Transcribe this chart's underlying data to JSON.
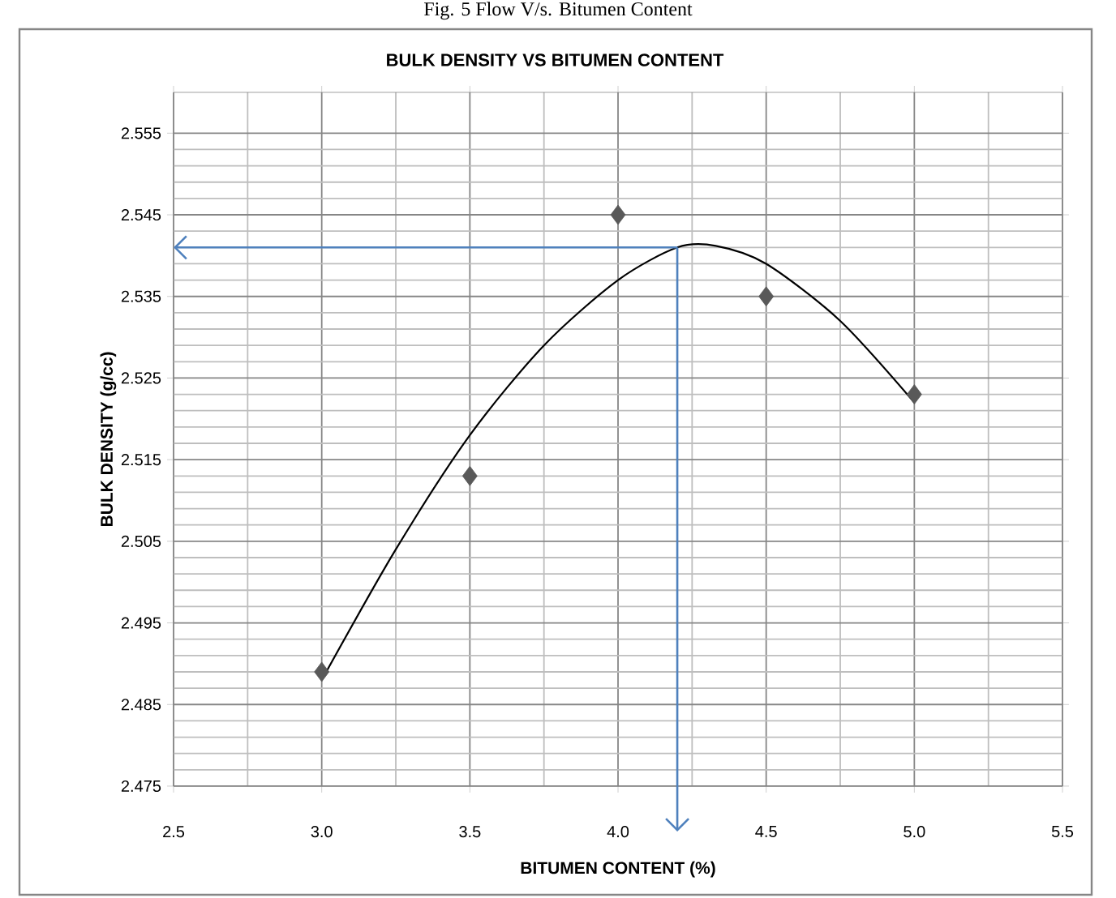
{
  "chart_data": {
    "type": "scatter",
    "title": "BULK DENSITY VS BITUMEN CONTENT",
    "xlabel": "BITUMEN CONTENT (%)",
    "ylabel": "BULK DENSITY (g/cc)",
    "annotations": [
      "Fig. 5 Flow V/s. Bitumen Content"
    ],
    "series": [
      {
        "type": "scatter",
        "x": [
          3.0,
          3.5,
          4.0,
          4.5,
          5.0
        ],
        "values": [
          2.489,
          2.513,
          2.545,
          2.535,
          2.523
        ],
        "color": "#595959",
        "marker": "diamond"
      },
      {
        "type": "line",
        "x": [
          3.0,
          3.25,
          3.5,
          3.75,
          4.0,
          4.2,
          4.33,
          4.5,
          4.75,
          5.0
        ],
        "values": [
          2.488,
          2.504,
          2.518,
          2.529,
          2.537,
          2.541,
          2.5412,
          2.539,
          2.532,
          2.522
        ],
        "color": "#000000",
        "marker": "none"
      }
    ],
    "xlim": [
      2.5,
      5.5
    ],
    "xticks": [
      {
        "value": 2.5,
        "label": "2.5"
      },
      {
        "value": 3.0,
        "label": "3.0"
      },
      {
        "value": 3.5,
        "label": "3.5"
      },
      {
        "value": 4.0,
        "label": "4.0"
      },
      {
        "value": 4.5,
        "label": "4.5"
      },
      {
        "value": 5.0,
        "label": "5.0"
      },
      {
        "value": 5.5,
        "label": "5.5"
      }
    ],
    "ylim": [
      2.475,
      2.56
    ],
    "yticks": [
      2.475,
      2.485,
      2.495,
      2.505,
      2.515,
      2.525,
      2.535,
      2.545,
      2.555
    ],
    "grid": true,
    "ref_lines": [
      {
        "axis": "x",
        "value": 4.2,
        "color": "#4f81bd"
      },
      {
        "axis": "y",
        "value": 2.541,
        "color": "#4f81bd"
      }
    ]
  }
}
